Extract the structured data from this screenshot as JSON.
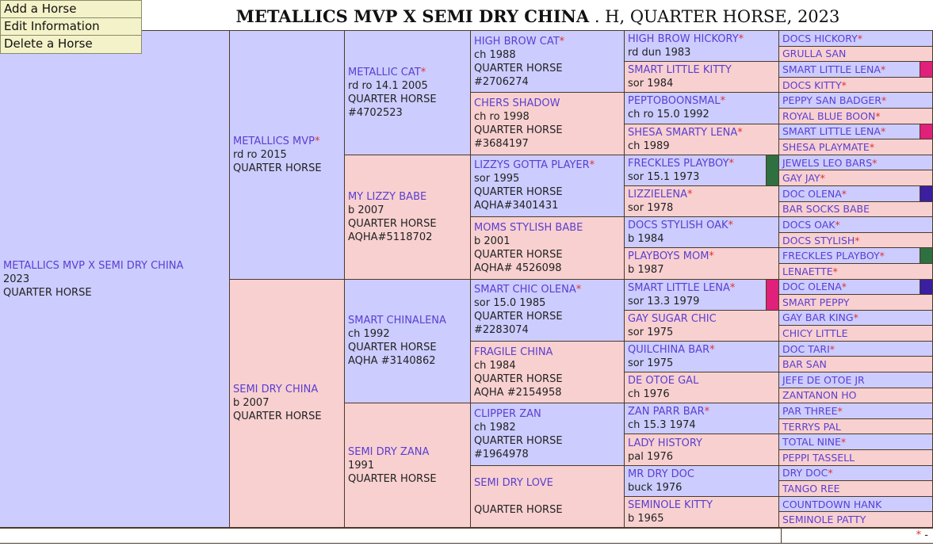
{
  "menu": [
    "Add a Horse",
    "Edit Information",
    "Delete a Horse"
  ],
  "title": {
    "horse": "METALLICS MVP X SEMI DRY CHINA",
    "rest": ". H, QUARTER HORSE, 2023"
  },
  "colors": {
    "male": "#ccccff",
    "female": "#f8d0d0",
    "link": "#5a3fd0",
    "star": "#e03030",
    "flag_pink": "#e0207a",
    "flag_green": "#2e7040",
    "flag_purple": "#3a1fa0"
  },
  "footer": {
    "legend": "* -"
  },
  "pedigree": [
    {
      "col": 1,
      "row": 1,
      "span": 32,
      "sex": "m",
      "name": "METALLICS MVP X SEMI DRY CHINA",
      "star": false,
      "lines": [
        "2023",
        "QUARTER HORSE"
      ]
    },
    {
      "col": 2,
      "row": 1,
      "span": 16,
      "sex": "m",
      "name": "METALLICS MVP",
      "star": true,
      "lines": [
        "rd ro 2015",
        "QUARTER HORSE"
      ]
    },
    {
      "col": 2,
      "row": 17,
      "span": 16,
      "sex": "f",
      "name": "SEMI DRY CHINA",
      "star": false,
      "lines": [
        "b 2007",
        "QUARTER HORSE"
      ]
    },
    {
      "col": 3,
      "row": 1,
      "span": 8,
      "sex": "m",
      "name": "METALLIC CAT",
      "star": true,
      "lines": [
        "rd ro 14.1 2005",
        "QUARTER HORSE",
        "#4702523"
      ]
    },
    {
      "col": 3,
      "row": 9,
      "span": 8,
      "sex": "f",
      "name": "MY LIZZY BABE",
      "star": false,
      "lines": [
        "b 2007",
        "QUARTER HORSE",
        "AQHA#5118702"
      ]
    },
    {
      "col": 3,
      "row": 17,
      "span": 8,
      "sex": "m",
      "name": "SMART CHINALENA",
      "star": false,
      "lines": [
        "ch 1992",
        "QUARTER HORSE",
        "AQHA #3140862"
      ]
    },
    {
      "col": 3,
      "row": 25,
      "span": 8,
      "sex": "f",
      "name": "SEMI DRY ZANA",
      "star": false,
      "lines": [
        "1991",
        "QUARTER HORSE"
      ]
    },
    {
      "col": 4,
      "row": 1,
      "span": 4,
      "sex": "m",
      "name": "HIGH BROW CAT",
      "star": true,
      "lines": [
        "ch 1988",
        "QUARTER HORSE",
        "#2706274"
      ]
    },
    {
      "col": 4,
      "row": 5,
      "span": 4,
      "sex": "f",
      "name": "CHERS SHADOW",
      "star": false,
      "lines": [
        "ch ro 1998",
        "QUARTER HORSE",
        "#3684197"
      ]
    },
    {
      "col": 4,
      "row": 9,
      "span": 4,
      "sex": "m",
      "name": "LIZZYS GOTTA PLAYER",
      "star": true,
      "lines": [
        "sor 1995",
        "QUARTER HORSE",
        "AQHA#3401431"
      ]
    },
    {
      "col": 4,
      "row": 13,
      "span": 4,
      "sex": "f",
      "name": "MOMS STYLISH BABE",
      "star": false,
      "lines": [
        "b 2001",
        "QUARTER HORSE",
        "AQHA# 4526098"
      ]
    },
    {
      "col": 4,
      "row": 17,
      "span": 4,
      "sex": "m",
      "name": "SMART CHIC OLENA",
      "star": true,
      "lines": [
        "sor 15.0 1985",
        "QUARTER HORSE",
        "#2283074"
      ]
    },
    {
      "col": 4,
      "row": 21,
      "span": 4,
      "sex": "f",
      "name": "FRAGILE CHINA",
      "star": false,
      "lines": [
        "ch 1984",
        "QUARTER HORSE",
        "AQHA #2154958"
      ]
    },
    {
      "col": 4,
      "row": 25,
      "span": 4,
      "sex": "m",
      "name": "CLIPPER ZAN",
      "star": false,
      "lines": [
        "ch 1982",
        "QUARTER HORSE",
        "#1964978"
      ]
    },
    {
      "col": 4,
      "row": 29,
      "span": 4,
      "sex": "f",
      "name": "SEMI DRY LOVE",
      "star": false,
      "lines": [
        "",
        "QUARTER HORSE"
      ]
    },
    {
      "col": 5,
      "row": 1,
      "span": 2,
      "sex": "m",
      "name": "HIGH BROW HICKORY",
      "star": true,
      "lines": [
        "rd dun 1983"
      ]
    },
    {
      "col": 5,
      "row": 3,
      "span": 2,
      "sex": "f",
      "name": "SMART LITTLE KITTY",
      "star": false,
      "lines": [
        "sor 1984"
      ]
    },
    {
      "col": 5,
      "row": 5,
      "span": 2,
      "sex": "m",
      "name": "PEPTOBOONSMAL",
      "star": true,
      "lines": [
        "ch ro 15.0 1992"
      ]
    },
    {
      "col": 5,
      "row": 7,
      "span": 2,
      "sex": "f",
      "name": "SHESA SMARTY LENA",
      "star": true,
      "lines": [
        "ch 1989"
      ]
    },
    {
      "col": 5,
      "row": 9,
      "span": 2,
      "sex": "m",
      "name": "FRECKLES PLAYBOY",
      "star": true,
      "lines": [
        "sor 15.1 1973"
      ],
      "flag": "green"
    },
    {
      "col": 5,
      "row": 11,
      "span": 2,
      "sex": "f",
      "name": "LIZZIELENA",
      "star": true,
      "lines": [
        "sor 1978"
      ]
    },
    {
      "col": 5,
      "row": 13,
      "span": 2,
      "sex": "m",
      "name": "DOCS STYLISH OAK",
      "star": true,
      "lines": [
        "b 1984"
      ]
    },
    {
      "col": 5,
      "row": 15,
      "span": 2,
      "sex": "f",
      "name": "PLAYBOYS MOM",
      "star": true,
      "lines": [
        "b 1987"
      ]
    },
    {
      "col": 5,
      "row": 17,
      "span": 2,
      "sex": "m",
      "name": "SMART LITTLE LENA",
      "star": true,
      "lines": [
        "sor 13.3 1979"
      ],
      "flag": "pink"
    },
    {
      "col": 5,
      "row": 19,
      "span": 2,
      "sex": "f",
      "name": "GAY SUGAR CHIC",
      "star": false,
      "lines": [
        "sor 1975"
      ]
    },
    {
      "col": 5,
      "row": 21,
      "span": 2,
      "sex": "m",
      "name": "QUILCHINA BAR",
      "star": true,
      "lines": [
        "sor 1975"
      ]
    },
    {
      "col": 5,
      "row": 23,
      "span": 2,
      "sex": "f",
      "name": "DE OTOE GAL",
      "star": false,
      "lines": [
        "ch 1976"
      ]
    },
    {
      "col": 5,
      "row": 25,
      "span": 2,
      "sex": "m",
      "name": "ZAN PARR BAR",
      "star": true,
      "lines": [
        "ch 15.3 1974"
      ]
    },
    {
      "col": 5,
      "row": 27,
      "span": 2,
      "sex": "f",
      "name": "LADY HISTORY",
      "star": false,
      "lines": [
        "pal 1976"
      ]
    },
    {
      "col": 5,
      "row": 29,
      "span": 2,
      "sex": "m",
      "name": "MR DRY DOC",
      "star": false,
      "lines": [
        "buck 1976"
      ]
    },
    {
      "col": 5,
      "row": 31,
      "span": 2,
      "sex": "f",
      "name": "SEMINOLE KITTY",
      "star": false,
      "lines": [
        "b 1965"
      ]
    },
    {
      "col": 6,
      "row": 1,
      "span": 1,
      "sex": "m",
      "name": "DOCS HICKORY",
      "star": true,
      "lines": []
    },
    {
      "col": 6,
      "row": 2,
      "span": 1,
      "sex": "f",
      "name": "GRULLA SAN",
      "star": false,
      "lines": []
    },
    {
      "col": 6,
      "row": 3,
      "span": 1,
      "sex": "m",
      "name": "SMART LITTLE LENA",
      "star": true,
      "lines": [],
      "flag": "pink"
    },
    {
      "col": 6,
      "row": 4,
      "span": 1,
      "sex": "f",
      "name": "DOCS KITTY",
      "star": true,
      "lines": []
    },
    {
      "col": 6,
      "row": 5,
      "span": 1,
      "sex": "m",
      "name": "PEPPY SAN BADGER",
      "star": true,
      "lines": []
    },
    {
      "col": 6,
      "row": 6,
      "span": 1,
      "sex": "f",
      "name": "ROYAL BLUE BOON",
      "star": true,
      "lines": []
    },
    {
      "col": 6,
      "row": 7,
      "span": 1,
      "sex": "m",
      "name": "SMART LITTLE LENA",
      "star": true,
      "lines": [],
      "flag": "pink"
    },
    {
      "col": 6,
      "row": 8,
      "span": 1,
      "sex": "f",
      "name": "SHESA PLAYMATE",
      "star": true,
      "lines": []
    },
    {
      "col": 6,
      "row": 9,
      "span": 1,
      "sex": "m",
      "name": "JEWELS LEO BARS",
      "star": true,
      "lines": []
    },
    {
      "col": 6,
      "row": 10,
      "span": 1,
      "sex": "f",
      "name": "GAY JAY",
      "star": true,
      "lines": []
    },
    {
      "col": 6,
      "row": 11,
      "span": 1,
      "sex": "m",
      "name": "DOC OLENA",
      "star": true,
      "lines": [],
      "flag": "purple"
    },
    {
      "col": 6,
      "row": 12,
      "span": 1,
      "sex": "f",
      "name": "BAR SOCKS BABE",
      "star": false,
      "lines": []
    },
    {
      "col": 6,
      "row": 13,
      "span": 1,
      "sex": "m",
      "name": "DOCS OAK",
      "star": true,
      "lines": []
    },
    {
      "col": 6,
      "row": 14,
      "span": 1,
      "sex": "f",
      "name": "DOCS STYLISH",
      "star": true,
      "lines": []
    },
    {
      "col": 6,
      "row": 15,
      "span": 1,
      "sex": "m",
      "name": "FRECKLES PLAYBOY",
      "star": true,
      "lines": [],
      "flag": "green"
    },
    {
      "col": 6,
      "row": 16,
      "span": 1,
      "sex": "f",
      "name": "LENAETTE",
      "star": true,
      "lines": []
    },
    {
      "col": 6,
      "row": 17,
      "span": 1,
      "sex": "m",
      "name": "DOC OLENA",
      "star": true,
      "lines": [],
      "flag": "purple"
    },
    {
      "col": 6,
      "row": 18,
      "span": 1,
      "sex": "f",
      "name": "SMART PEPPY",
      "star": false,
      "lines": []
    },
    {
      "col": 6,
      "row": 19,
      "span": 1,
      "sex": "m",
      "name": "GAY BAR KING",
      "star": true,
      "lines": []
    },
    {
      "col": 6,
      "row": 20,
      "span": 1,
      "sex": "f",
      "name": "CHICY LITTLE",
      "star": false,
      "lines": []
    },
    {
      "col": 6,
      "row": 21,
      "span": 1,
      "sex": "m",
      "name": "DOC TARI",
      "star": true,
      "lines": []
    },
    {
      "col": 6,
      "row": 22,
      "span": 1,
      "sex": "f",
      "name": "BAR SAN",
      "star": false,
      "lines": []
    },
    {
      "col": 6,
      "row": 23,
      "span": 1,
      "sex": "m",
      "name": "JEFE DE OTOE JR",
      "star": false,
      "lines": []
    },
    {
      "col": 6,
      "row": 24,
      "span": 1,
      "sex": "f",
      "name": "ZANTANON HO",
      "star": false,
      "lines": []
    },
    {
      "col": 6,
      "row": 25,
      "span": 1,
      "sex": "m",
      "name": "PAR THREE",
      "star": true,
      "lines": []
    },
    {
      "col": 6,
      "row": 26,
      "span": 1,
      "sex": "f",
      "name": "TERRYS PAL",
      "star": false,
      "lines": []
    },
    {
      "col": 6,
      "row": 27,
      "span": 1,
      "sex": "m",
      "name": "TOTAL NINE",
      "star": true,
      "lines": []
    },
    {
      "col": 6,
      "row": 28,
      "span": 1,
      "sex": "f",
      "name": "PEPPI TASSELL",
      "star": false,
      "lines": []
    },
    {
      "col": 6,
      "row": 29,
      "span": 1,
      "sex": "m",
      "name": "DRY DOC",
      "star": true,
      "lines": []
    },
    {
      "col": 6,
      "row": 30,
      "span": 1,
      "sex": "f",
      "name": "TANGO REE",
      "star": false,
      "lines": []
    },
    {
      "col": 6,
      "row": 31,
      "span": 1,
      "sex": "m",
      "name": "COUNTDOWN HANK",
      "star": false,
      "lines": []
    },
    {
      "col": 6,
      "row": 32,
      "span": 1,
      "sex": "f",
      "name": "SEMINOLE PATTY",
      "star": false,
      "lines": []
    }
  ]
}
